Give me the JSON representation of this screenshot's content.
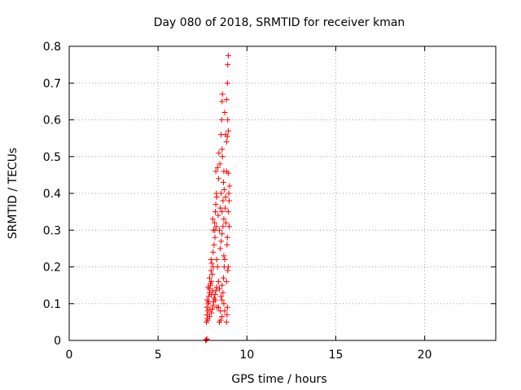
{
  "chart_data": {
    "type": "scatter",
    "title": "Day 080 of 2018, SRMTID for receiver kman",
    "xlabel": "GPS time / hours",
    "ylabel": "SRMTID / TECUs",
    "xlim": [
      0,
      24
    ],
    "ylim": [
      0,
      0.8
    ],
    "xticks": [
      0,
      5,
      10,
      15,
      20
    ],
    "yticks": [
      0,
      0.1,
      0.2,
      0.3,
      0.4,
      0.5,
      0.6,
      0.7,
      0.8
    ],
    "ytick_labels": [
      "0",
      "0.1",
      "0.2",
      "0.3",
      "0.4",
      "0.5",
      "0.6",
      "0.7",
      "0.8"
    ],
    "grid": true,
    "marker": "plus",
    "color": "#ff0000",
    "points": [
      [
        7.68,
        0.0
      ],
      [
        7.72,
        0.002
      ],
      [
        7.75,
        0.004
      ],
      [
        7.72,
        0.05
      ],
      [
        7.78,
        0.06
      ],
      [
        7.75,
        0.07
      ],
      [
        7.8,
        0.08
      ],
      [
        7.74,
        0.09
      ],
      [
        7.82,
        0.1
      ],
      [
        7.76,
        0.11
      ],
      [
        7.85,
        0.12
      ],
      [
        7.9,
        0.13
      ],
      [
        7.88,
        0.14
      ],
      [
        7.95,
        0.15
      ],
      [
        8.0,
        0.16
      ],
      [
        7.8,
        0.055
      ],
      [
        7.9,
        0.065
      ],
      [
        8.0,
        0.075
      ],
      [
        8.05,
        0.085
      ],
      [
        8.1,
        0.095
      ],
      [
        7.85,
        0.105
      ],
      [
        8.15,
        0.115
      ],
      [
        8.2,
        0.125
      ],
      [
        8.25,
        0.135
      ],
      [
        8.3,
        0.145
      ],
      [
        7.95,
        0.155
      ],
      [
        8.05,
        0.18
      ],
      [
        7.98,
        0.19
      ],
      [
        8.02,
        0.21
      ],
      [
        7.98,
        0.22
      ],
      [
        8.1,
        0.24
      ],
      [
        8.15,
        0.26
      ],
      [
        8.2,
        0.28
      ],
      [
        8.12,
        0.3
      ],
      [
        8.18,
        0.32
      ],
      [
        8.08,
        0.33
      ],
      [
        8.22,
        0.35
      ],
      [
        8.25,
        0.37
      ],
      [
        8.3,
        0.39
      ],
      [
        8.28,
        0.4
      ],
      [
        8.25,
        0.46
      ],
      [
        8.35,
        0.47
      ],
      [
        8.4,
        0.44
      ],
      [
        8.45,
        0.05
      ],
      [
        8.5,
        0.08
      ],
      [
        8.4,
        0.09
      ],
      [
        8.55,
        0.12
      ],
      [
        8.45,
        0.14
      ],
      [
        8.6,
        0.11
      ],
      [
        8.5,
        0.25
      ],
      [
        8.55,
        0.27
      ],
      [
        8.6,
        0.29
      ],
      [
        8.65,
        0.31
      ],
      [
        8.7,
        0.33
      ],
      [
        8.6,
        0.35
      ],
      [
        8.65,
        0.38
      ],
      [
        8.72,
        0.41
      ],
      [
        8.68,
        0.43
      ],
      [
        8.7,
        0.46
      ],
      [
        8.62,
        0.5
      ],
      [
        8.6,
        0.52
      ],
      [
        8.55,
        0.56
      ],
      [
        8.58,
        0.6
      ],
      [
        8.6,
        0.65
      ],
      [
        8.62,
        0.67
      ],
      [
        8.75,
        0.62
      ],
      [
        8.8,
        0.56
      ],
      [
        8.85,
        0.54
      ],
      [
        8.9,
        0.555
      ],
      [
        8.95,
        0.57
      ],
      [
        8.92,
        0.6
      ],
      [
        8.85,
        0.655
      ],
      [
        8.9,
        0.7
      ],
      [
        8.92,
        0.75
      ],
      [
        8.95,
        0.775
      ],
      [
        8.85,
        0.05
      ],
      [
        8.88,
        0.07
      ],
      [
        8.9,
        0.09
      ],
      [
        8.85,
        0.16
      ],
      [
        8.92,
        0.19
      ],
      [
        8.95,
        0.2
      ],
      [
        8.88,
        0.26
      ],
      [
        8.9,
        0.28
      ],
      [
        9.0,
        0.31
      ],
      [
        8.95,
        0.35
      ],
      [
        9.0,
        0.38
      ],
      [
        8.98,
        0.4
      ],
      [
        9.02,
        0.42
      ],
      [
        8.95,
        0.455
      ],
      [
        8.85,
        0.46
      ],
      [
        8.8,
        0.39
      ],
      [
        8.78,
        0.36
      ],
      [
        8.82,
        0.32
      ],
      [
        8.75,
        0.22
      ],
      [
        8.7,
        0.23
      ],
      [
        8.72,
        0.2
      ],
      [
        8.68,
        0.17
      ],
      [
        8.4,
        0.16
      ],
      [
        8.35,
        0.2
      ],
      [
        8.3,
        0.22
      ],
      [
        8.45,
        0.3
      ],
      [
        8.38,
        0.34
      ],
      [
        8.5,
        0.36
      ],
      [
        8.55,
        0.4
      ],
      [
        8.48,
        0.48
      ],
      [
        8.42,
        0.51
      ],
      [
        7.9,
        0.17
      ],
      [
        8.1,
        0.2
      ],
      [
        8.2,
        0.3
      ],
      [
        8.28,
        0.31
      ],
      [
        8.6,
        0.15
      ],
      [
        8.65,
        0.13
      ],
      [
        8.7,
        0.1
      ],
      [
        8.75,
        0.08
      ],
      [
        8.6,
        0.065
      ],
      [
        8.52,
        0.055
      ],
      [
        8.0,
        0.125
      ],
      [
        8.08,
        0.135
      ],
      [
        8.12,
        0.105
      ],
      [
        7.92,
        0.085
      ],
      [
        7.82,
        0.145
      ],
      [
        8.22,
        0.11
      ],
      [
        8.32,
        0.09
      ]
    ]
  }
}
